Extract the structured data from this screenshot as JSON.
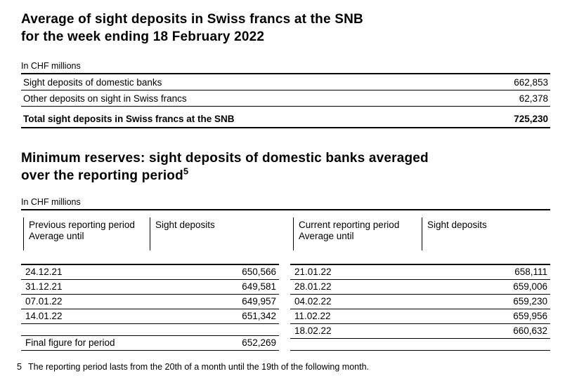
{
  "page": {
    "background_color": "#ffffff",
    "text_color": "#000000",
    "rule_color": "#000000"
  },
  "section1": {
    "title_line1": "Average of sight deposits in Swiss francs at the SNB",
    "title_line2": "for the week ending 18 February 2022",
    "unit_label": "In CHF millions",
    "rows": [
      {
        "label": "Sight deposits of domestic banks",
        "value": "662,853"
      },
      {
        "label": "Other deposits on sight in Swiss francs",
        "value": "62,378"
      }
    ],
    "total": {
      "label": "Total sight deposits in Swiss francs at the SNB",
      "value": "725,230"
    }
  },
  "section2": {
    "title_line1": "Minimum reserves: sight deposits of domestic banks averaged",
    "title_line2": "over the reporting period",
    "title_footnote_marker": "5",
    "unit_label": "In CHF millions",
    "table": {
      "previous": {
        "header_line1": "Previous reporting period",
        "header_line2": "Average until",
        "deposits_header": "Sight deposits",
        "rows": [
          {
            "date": "24.12.21",
            "value": "650,566"
          },
          {
            "date": "31.12.21",
            "value": "649,581"
          },
          {
            "date": "07.01.22",
            "value": "649,957"
          },
          {
            "date": "14.01.22",
            "value": "651,342"
          }
        ],
        "final": {
          "label": "Final figure for period",
          "value": "652,269"
        }
      },
      "current": {
        "header_line1": "Current reporting period",
        "header_line2": "Average until",
        "deposits_header": "Sight deposits",
        "rows": [
          {
            "date": "21.01.22",
            "value": "658,111"
          },
          {
            "date": "28.01.22",
            "value": "659,006"
          },
          {
            "date": "04.02.22",
            "value": "659,230"
          },
          {
            "date": "11.02.22",
            "value": "659,956"
          },
          {
            "date": "18.02.22",
            "value": "660,632"
          }
        ]
      }
    }
  },
  "footnote": {
    "marker": "5",
    "text": "The reporting period lasts from the 20th of a month until the 19th of the following month."
  }
}
